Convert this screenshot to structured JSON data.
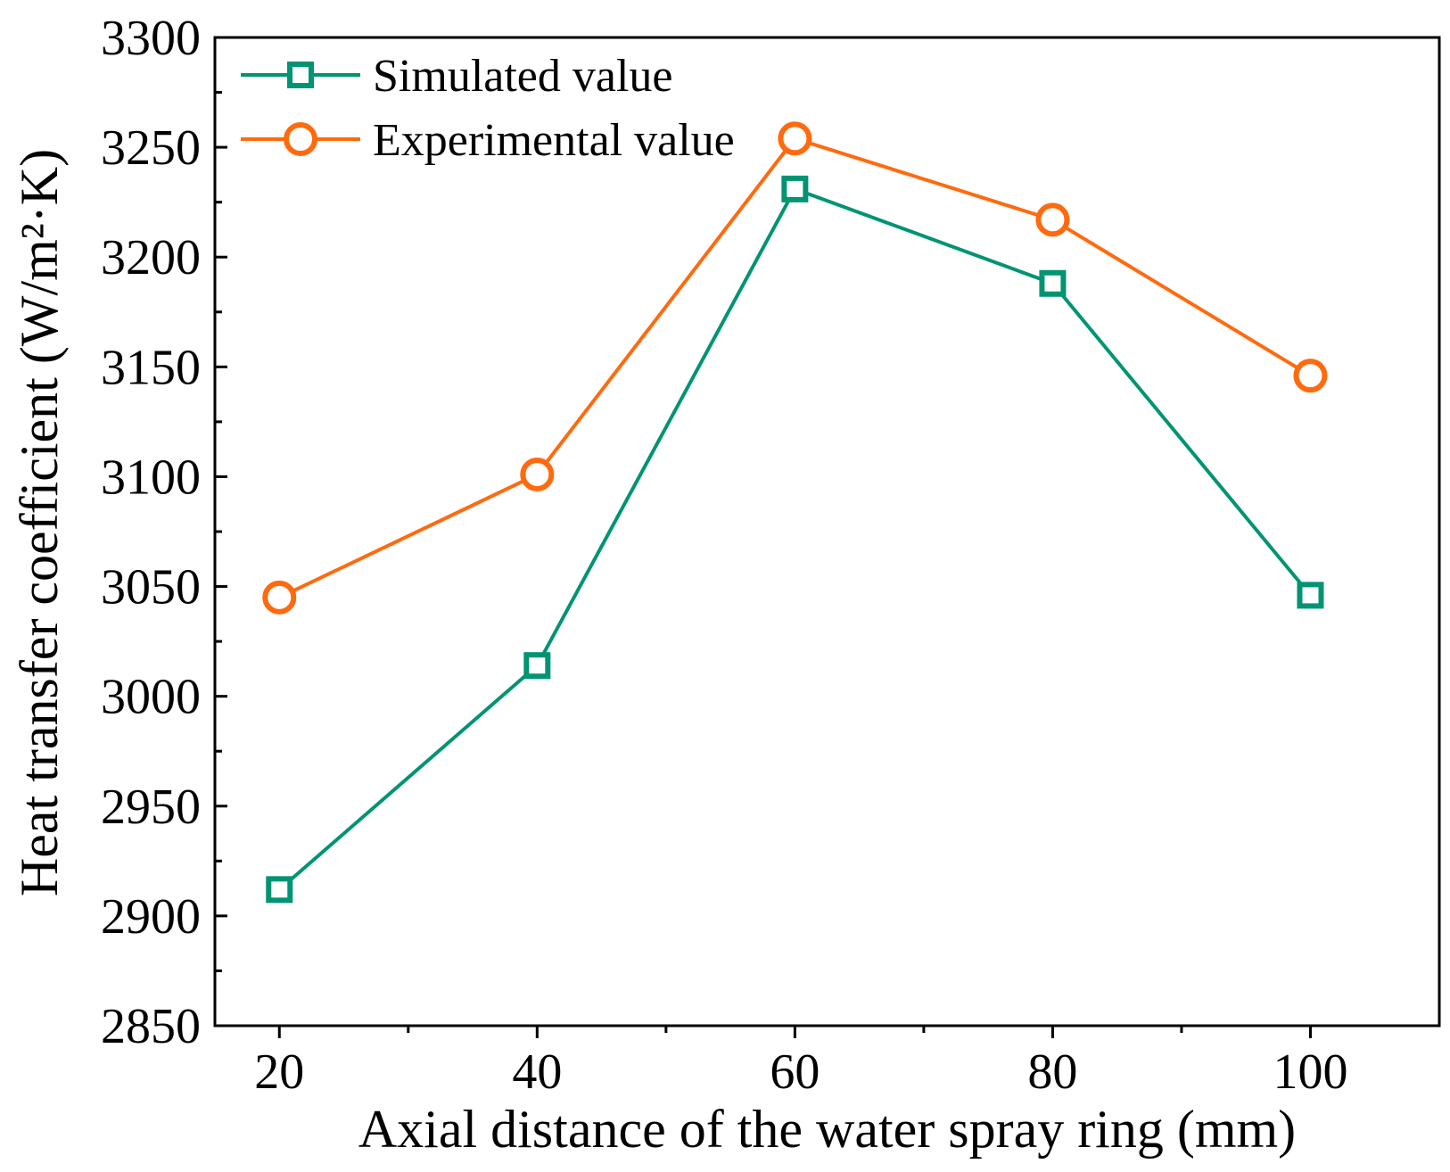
{
  "chart_data": {
    "type": "line",
    "title": "",
    "xlabel": "Axial distance of the water spray ring (mm)",
    "ylabel": "Heat transfer coefficient (W/m²·K)",
    "xlim": [
      15,
      110
    ],
    "ylim": [
      2850,
      3300
    ],
    "x_ticks": [
      20,
      40,
      60,
      80,
      100
    ],
    "x_minor_ticks": [
      30,
      50,
      70,
      90
    ],
    "y_ticks": [
      2850,
      2900,
      2950,
      3000,
      3050,
      3100,
      3150,
      3200,
      3250,
      3300
    ],
    "y_minor_ticks": [
      2875,
      2925,
      2975,
      3025,
      3075,
      3125,
      3175,
      3225,
      3275
    ],
    "x_tick_labels": [
      "20",
      "40",
      "60",
      "80",
      "100"
    ],
    "y_tick_labels": [
      "2850",
      "2900",
      "2950",
      "3000",
      "3050",
      "3100",
      "3150",
      "3200",
      "3250",
      "3300"
    ],
    "grid": false,
    "legend_position": "top-left",
    "x": [
      20,
      40,
      60,
      80,
      100
    ],
    "series": [
      {
        "name": "Simulated value",
        "marker": "square",
        "color": "#009473",
        "values": [
          2912,
          3014,
          3231,
          3188,
          3046
        ]
      },
      {
        "name": "Experimental value",
        "marker": "circle",
        "color": "#FF6A0E",
        "values": [
          3045,
          3101,
          3254,
          3217,
          3146
        ]
      }
    ]
  }
}
